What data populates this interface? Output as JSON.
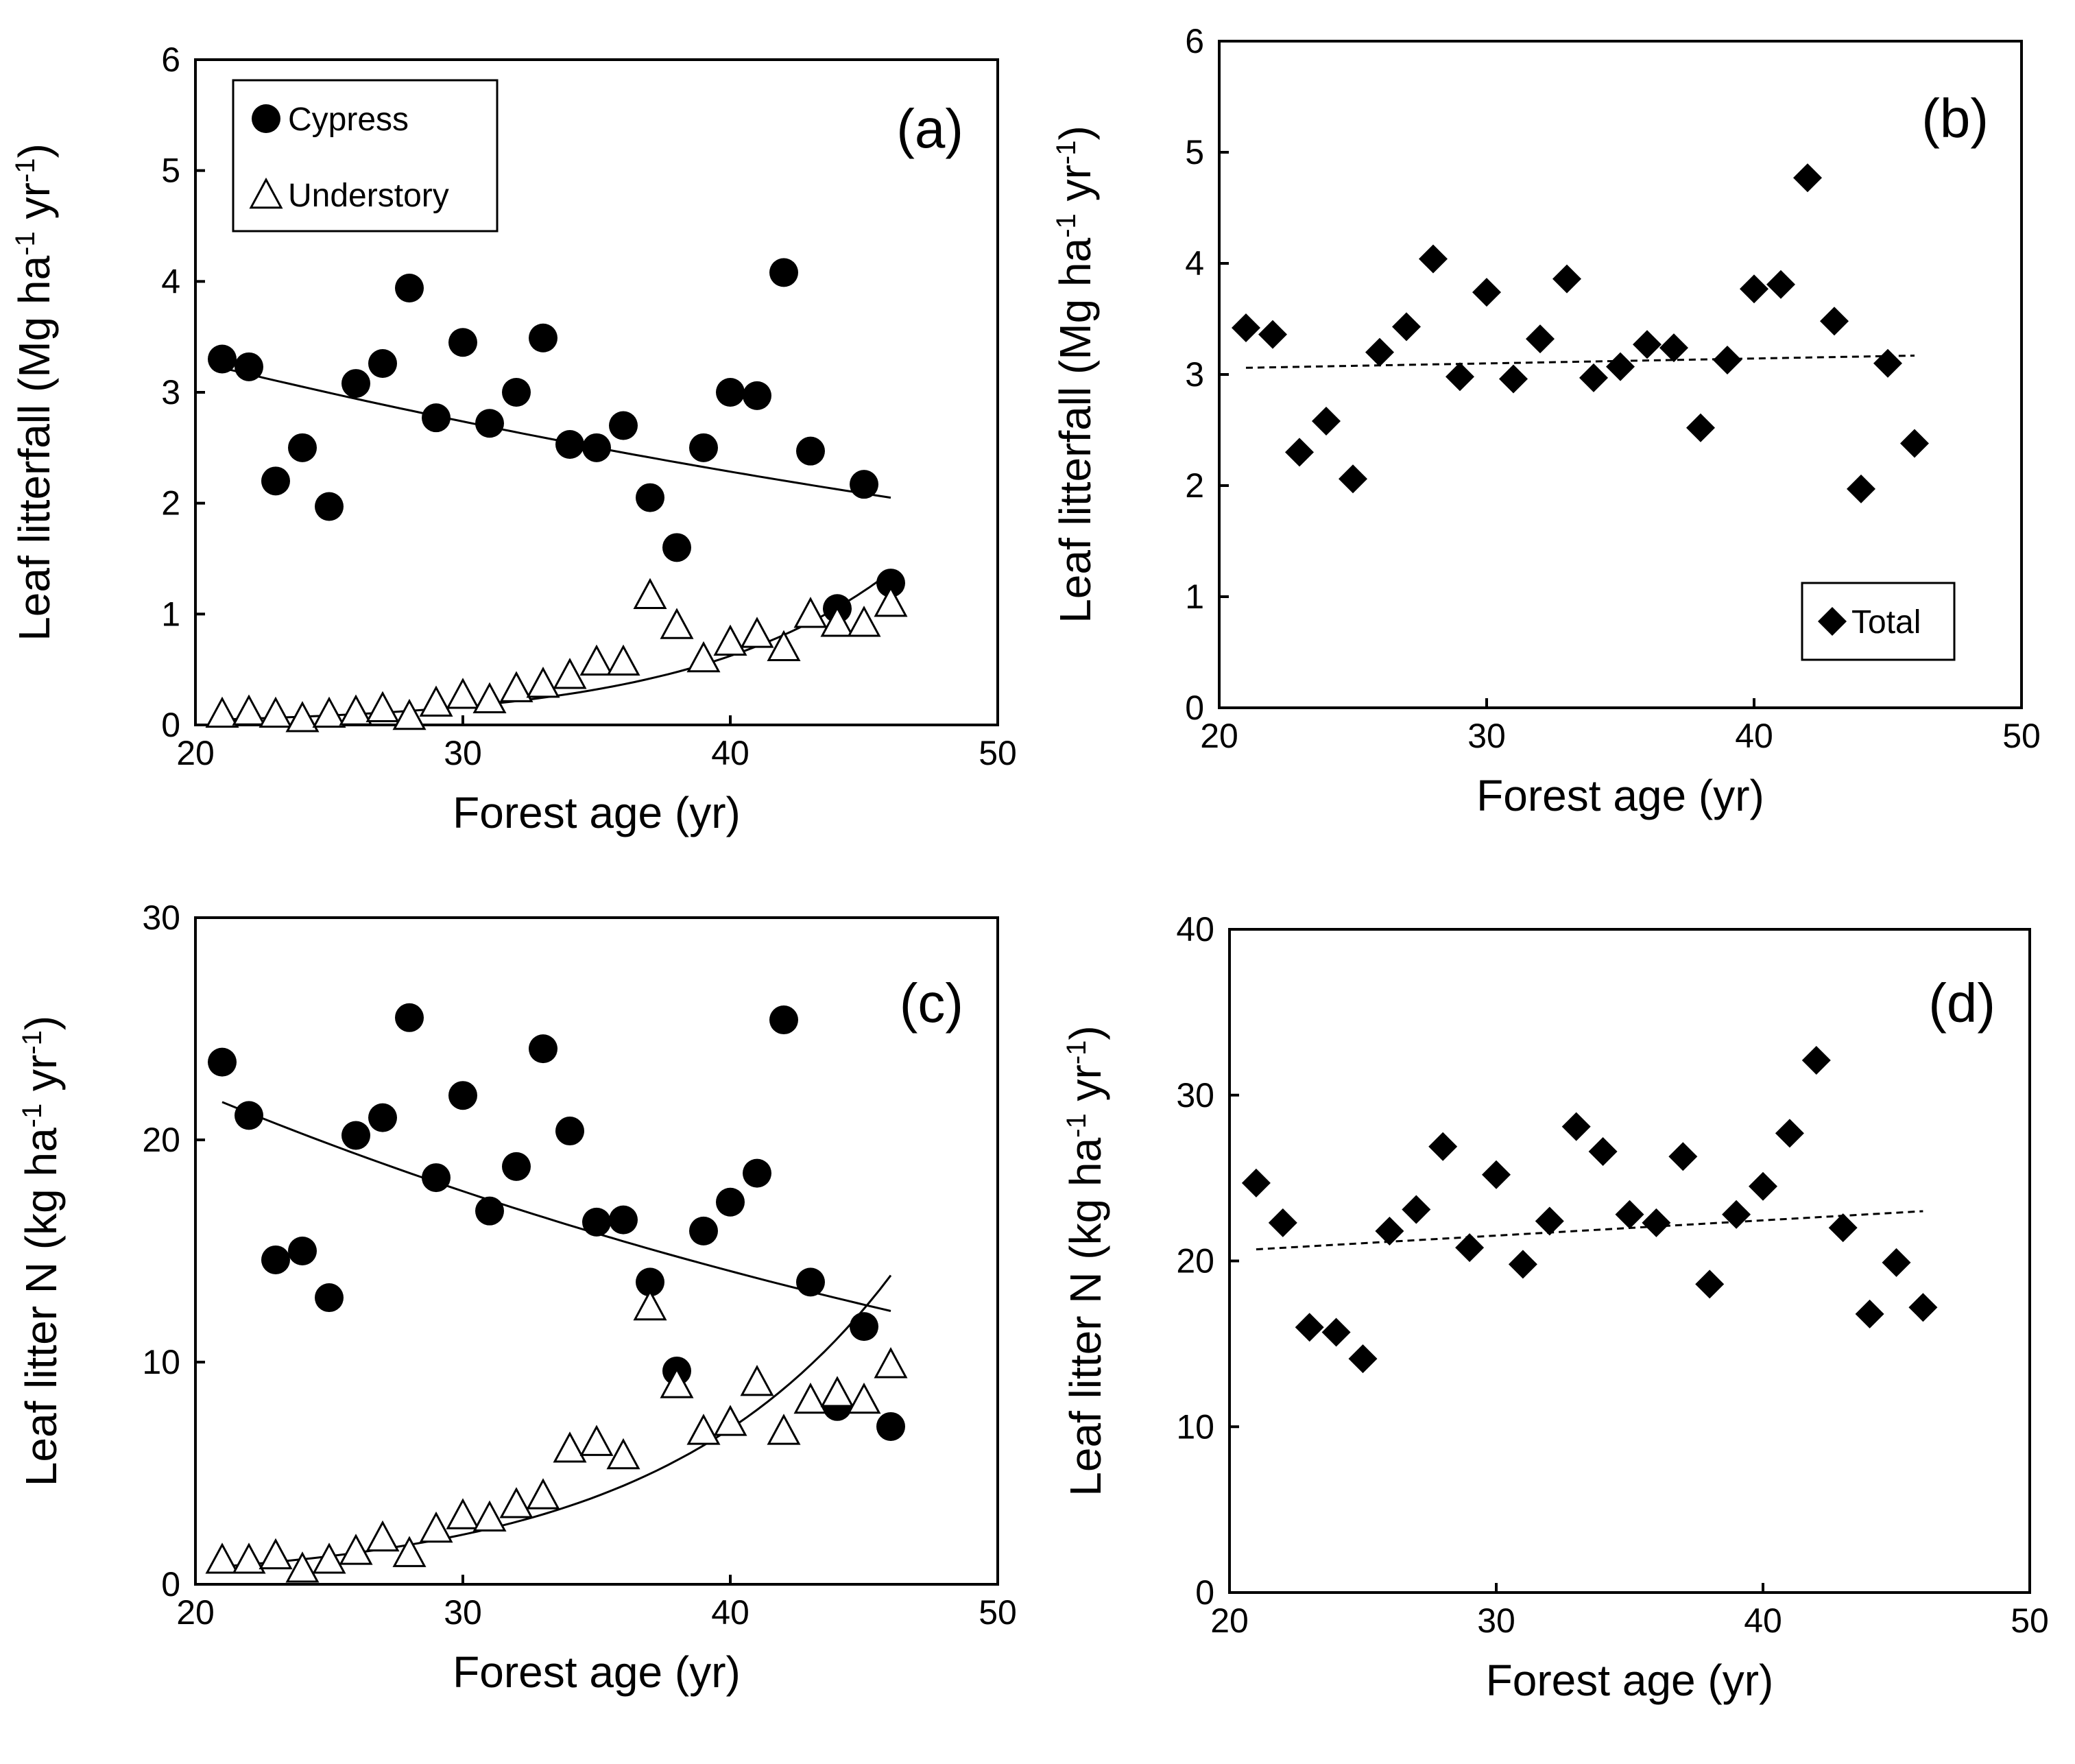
{
  "figure": {
    "x_axis_title": "Forest age (yr)"
  },
  "chart_data": [
    {
      "id": "a",
      "type": "scatter",
      "panel_label": "(a)",
      "title": "",
      "xlabel": "Forest age (yr)",
      "ylabel_prefix": "Leaf litterfall (Mg ha",
      "ylabel_mid": " yr",
      "ylabel_suffix": ")",
      "ylabel_sup": "-1",
      "xlim": [
        20,
        50
      ],
      "ylim": [
        0,
        6
      ],
      "xticks": [
        "20",
        "30",
        "40",
        "50"
      ],
      "yticks": [
        "0",
        "1",
        "2",
        "3",
        "4",
        "5",
        "6"
      ],
      "legend": {
        "position": "top-left",
        "entries": [
          "Cypress",
          "Understory"
        ]
      },
      "series": [
        {
          "name": "Cypress",
          "marker": "circle-filled",
          "x": [
            21,
            22,
            23,
            24,
            25,
            26,
            27,
            28,
            29,
            30,
            31,
            32,
            33,
            34,
            35,
            36,
            37,
            38,
            39,
            40,
            41,
            42,
            43,
            44,
            45,
            46
          ],
          "y": [
            3.3,
            3.23,
            2.2,
            2.5,
            1.97,
            3.08,
            3.26,
            3.94,
            2.77,
            3.45,
            2.72,
            3.0,
            3.49,
            2.53,
            2.5,
            2.7,
            2.05,
            1.6,
            2.5,
            3.0,
            2.97,
            4.08,
            2.47,
            1.05,
            2.17,
            1.28
          ],
          "trend": {
            "kind": "exponential",
            "x": [
              21,
              46
            ],
            "y": [
              3.22,
              2.05
            ]
          }
        },
        {
          "name": "Understory",
          "marker": "triangle-open",
          "x": [
            21,
            22,
            23,
            24,
            25,
            26,
            27,
            28,
            29,
            30,
            31,
            32,
            33,
            34,
            35,
            36,
            37,
            38,
            39,
            40,
            41,
            42,
            43,
            44,
            45,
            46
          ],
          "y": [
            0.1,
            0.12,
            0.1,
            0.06,
            0.1,
            0.12,
            0.15,
            0.08,
            0.2,
            0.27,
            0.23,
            0.33,
            0.37,
            0.45,
            0.57,
            0.57,
            1.17,
            0.9,
            0.6,
            0.75,
            0.82,
            0.7,
            1.0,
            0.92,
            0.92,
            1.1
          ],
          "trend": {
            "kind": "exponential",
            "x": [
              21,
              46
            ],
            "y": [
              0.05,
              1.38
            ]
          }
        }
      ]
    },
    {
      "id": "b",
      "type": "scatter",
      "panel_label": "(b)",
      "title": "",
      "xlabel": "Forest age (yr)",
      "ylabel_prefix": "Leaf litterfall (Mg ha",
      "ylabel_mid": " yr",
      "ylabel_suffix": ")",
      "ylabel_sup": "-1",
      "xlim": [
        20,
        50
      ],
      "ylim": [
        0,
        6
      ],
      "xticks": [
        "20",
        "30",
        "40",
        "50"
      ],
      "yticks": [
        "0",
        "1",
        "2",
        "3",
        "4",
        "5",
        "6"
      ],
      "legend": {
        "position": "bottom-right",
        "entries": [
          "Total"
        ]
      },
      "series": [
        {
          "name": "Total",
          "marker": "diamond-filled",
          "x": [
            21,
            22,
            23,
            24,
            25,
            26,
            27,
            28,
            29,
            30,
            31,
            32,
            33,
            34,
            35,
            36,
            37,
            38,
            39,
            40,
            41,
            42,
            43,
            44,
            45,
            46
          ],
          "y": [
            3.42,
            3.36,
            2.3,
            2.58,
            2.06,
            3.2,
            3.43,
            4.04,
            2.98,
            3.74,
            2.96,
            3.32,
            3.86,
            2.97,
            3.07,
            3.27,
            3.24,
            2.52,
            3.13,
            3.77,
            3.81,
            4.77,
            3.48,
            1.97,
            3.1,
            2.38
          ],
          "trend": {
            "kind": "linear-dashed",
            "x": [
              21,
              46
            ],
            "y": [
              3.06,
              3.17
            ]
          }
        }
      ]
    },
    {
      "id": "c",
      "type": "scatter",
      "panel_label": "(c)",
      "title": "",
      "xlabel": "Forest age (yr)",
      "ylabel_prefix": "Leaf litter N (kg ha",
      "ylabel_mid": " yr",
      "ylabel_suffix": ")",
      "ylabel_sup": "-1",
      "xlim": [
        20,
        50
      ],
      "ylim": [
        0,
        30
      ],
      "xticks": [
        "20",
        "30",
        "40",
        "50"
      ],
      "yticks": [
        "0",
        "10",
        "20",
        "30"
      ],
      "legend": null,
      "series": [
        {
          "name": "Cypress",
          "marker": "circle-filled",
          "x": [
            21,
            22,
            23,
            24,
            25,
            26,
            27,
            28,
            29,
            30,
            31,
            32,
            33,
            34,
            35,
            36,
            37,
            38,
            39,
            40,
            41,
            42,
            43,
            44,
            45,
            46
          ],
          "y": [
            23.5,
            21.1,
            14.6,
            15.0,
            12.9,
            20.2,
            21.0,
            25.5,
            18.3,
            22.0,
            16.8,
            18.8,
            24.1,
            20.4,
            16.3,
            16.4,
            13.6,
            9.6,
            15.9,
            17.2,
            18.5,
            25.4,
            13.6,
            8.0,
            11.6,
            7.1
          ],
          "trend": {
            "kind": "exponential",
            "x": [
              21,
              46
            ],
            "y": [
              21.7,
              12.3
            ]
          }
        },
        {
          "name": "Understory",
          "marker": "triangle-open",
          "x": [
            21,
            22,
            23,
            24,
            25,
            26,
            27,
            28,
            29,
            30,
            31,
            32,
            33,
            34,
            35,
            36,
            37,
            38,
            39,
            40,
            41,
            42,
            43,
            44,
            45,
            46
          ],
          "y": [
            1.1,
            1.1,
            1.3,
            0.7,
            1.1,
            1.5,
            2.1,
            1.4,
            2.5,
            3.1,
            3.0,
            3.6,
            4.0,
            6.1,
            6.4,
            5.8,
            12.5,
            9.0,
            6.9,
            7.3,
            9.1,
            6.9,
            8.3,
            8.6,
            8.3,
            9.9
          ],
          "trend": {
            "kind": "exponential",
            "x": [
              21,
              46
            ],
            "y": [
              0.8,
              13.9
            ]
          }
        }
      ]
    },
    {
      "id": "d",
      "type": "scatter",
      "panel_label": "(d)",
      "title": "",
      "xlabel": "Forest age (yr)",
      "ylabel_prefix": "Leaf litter N (kg ha",
      "ylabel_mid": " yr",
      "ylabel_suffix": ")",
      "ylabel_sup": "-1",
      "xlim": [
        20,
        50
      ],
      "ylim": [
        0,
        40
      ],
      "xticks": [
        "20",
        "30",
        "40",
        "50"
      ],
      "yticks": [
        "0",
        "10",
        "20",
        "30",
        "40"
      ],
      "legend": null,
      "series": [
        {
          "name": "Total",
          "marker": "diamond-filled",
          "x": [
            21,
            22,
            23,
            24,
            25,
            26,
            27,
            28,
            29,
            30,
            31,
            32,
            33,
            34,
            35,
            36,
            37,
            38,
            39,
            40,
            41,
            42,
            43,
            44,
            45,
            46
          ],
          "y": [
            24.7,
            22.3,
            16.0,
            15.7,
            14.1,
            21.8,
            23.1,
            26.9,
            20.8,
            25.2,
            19.8,
            22.4,
            28.1,
            26.6,
            22.8,
            22.3,
            26.3,
            18.6,
            22.8,
            24.5,
            27.7,
            32.1,
            22.0,
            16.8,
            19.9,
            17.2
          ],
          "trend": {
            "kind": "linear-dashed",
            "x": [
              21,
              46
            ],
            "y": [
              20.7,
              23.0
            ]
          }
        }
      ]
    }
  ]
}
